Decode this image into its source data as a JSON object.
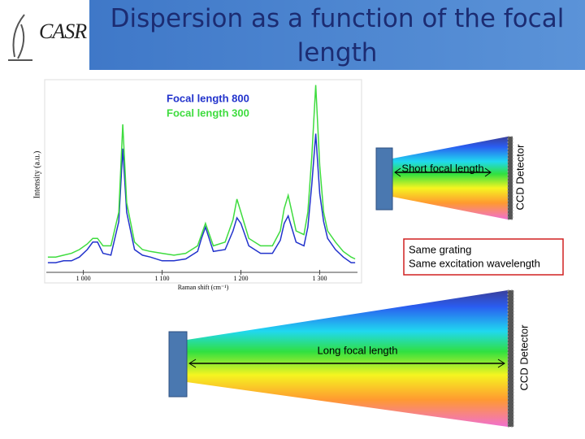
{
  "header": {
    "logo": "CASR",
    "title": "Dispersion as a function of the focal length"
  },
  "chart_data": {
    "type": "line",
    "y_label": "Intensity (a.u.)",
    "x_label": "Raman shift (cm⁻¹)",
    "x": [
      955,
      965,
      975,
      985,
      995,
      1005,
      1012,
      1018,
      1025,
      1035,
      1045,
      1050,
      1055,
      1065,
      1075,
      1085,
      1100,
      1115,
      1130,
      1145,
      1150,
      1155,
      1165,
      1180,
      1190,
      1195,
      1200,
      1210,
      1225,
      1240,
      1250,
      1255,
      1260,
      1270,
      1280,
      1285,
      1290,
      1295,
      1300,
      1305,
      1310,
      1320,
      1330,
      1340,
      1345
    ],
    "series": [
      {
        "name": "Focal length 800",
        "color": "#2233cc",
        "values": [
          3,
          3,
          4,
          4,
          6,
          10,
          14,
          14,
          8,
          7,
          25,
          64,
          30,
          10,
          7,
          6,
          4,
          4,
          5,
          9,
          16,
          22,
          9,
          10,
          20,
          27,
          24,
          12,
          8,
          8,
          15,
          24,
          28,
          14,
          12,
          22,
          45,
          72,
          40,
          25,
          16,
          10,
          6,
          3,
          3
        ]
      },
      {
        "name": "Focal length 300",
        "color": "#3fdc3f",
        "values": [
          6,
          6,
          7,
          8,
          10,
          13,
          16,
          16,
          12,
          12,
          30,
          77,
          35,
          14,
          10,
          9,
          8,
          7,
          8,
          12,
          18,
          24,
          12,
          14,
          26,
          37,
          30,
          16,
          12,
          12,
          20,
          32,
          39,
          20,
          18,
          30,
          60,
          98,
          55,
          30,
          20,
          14,
          9,
          6,
          5
        ]
      }
    ],
    "xlim": [
      953,
      1348
    ],
    "xticks": [
      {
        "value": 1000,
        "label": "1 000"
      },
      {
        "value": 1100,
        "label": "1 100"
      },
      {
        "value": 1200,
        "label": "1 200"
      },
      {
        "value": 1300,
        "label": "1 300"
      }
    ],
    "ylim": [
      0,
      100
    ]
  },
  "diagram": {
    "short": {
      "label": "Short focal length",
      "detector": "CCD Detector"
    },
    "note": {
      "lines": [
        "Same grating",
        "Same excitation wavelength"
      ]
    },
    "long": {
      "label": "Long focal length",
      "detector": "CCD Detector"
    }
  }
}
